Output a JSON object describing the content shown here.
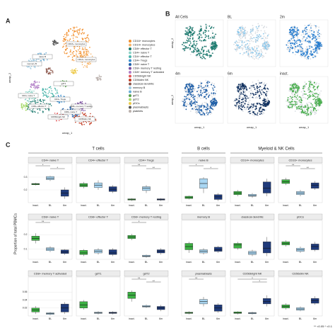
{
  "panel_a": {
    "label": "A",
    "x_label": "umap_1",
    "y_label": "umap_2",
    "legend": [
      {
        "name": "CD16+ monocytes",
        "color": "#f28e2b"
      },
      {
        "name": "CD14+ monocytes",
        "color": "#f7b56b"
      },
      {
        "name": "CD8+ effector T",
        "color": "#1b7a6e"
      },
      {
        "name": "CD4+ naive T",
        "color": "#8dd3c7"
      },
      {
        "name": "CD4+ effector T",
        "color": "#4db6ac"
      },
      {
        "name": "CD4+ Tregs",
        "color": "#3a8fd0"
      },
      {
        "name": "CD8+ naive T",
        "color": "#1f5fa8"
      },
      {
        "name": "CD8+ memory T resting",
        "color": "#7b4fa0"
      },
      {
        "name": "CD8+ memory T activated",
        "color": "#b07cc6"
      },
      {
        "name": "CD56bright NK",
        "color": "#e15759"
      },
      {
        "name": "CD56dim NK",
        "color": "#c23b22"
      },
      {
        "name": "classical dendritic",
        "color": "#8c564b"
      },
      {
        "name": "memory B",
        "color": "#9ecae1"
      },
      {
        "name": "naive B",
        "color": "#6baed6"
      },
      {
        "name": "gdT1",
        "color": "#59a14f"
      },
      {
        "name": "gdT2",
        "color": "#a6d96a"
      },
      {
        "name": "pDCs",
        "color": "#edc948"
      },
      {
        "name": "plasmablasts",
        "color": "#555555"
      },
      {
        "name": "platelets",
        "color": "#bab0ac"
      }
    ]
  },
  "panel_b": {
    "label": "B",
    "x_label": "umap_1",
    "y_label": "umap_2",
    "plots": [
      {
        "title": "All Cells",
        "color": "#1b7a6e"
      },
      {
        "title": "BL",
        "color": "#8ec9ec"
      },
      {
        "title": "2m",
        "color": "#2a7fd0"
      },
      {
        "title": "4m",
        "color": "#1f5fa8"
      },
      {
        "title": "6m",
        "color": "#10305f"
      },
      {
        "title": "inact.",
        "color": "#4caf50"
      }
    ]
  },
  "panel_c": {
    "label": "C",
    "y_label": "Proportion of total PBMCs",
    "groups": [
      "T cells",
      "B cells",
      "Myeloid & NK Cells"
    ],
    "x_labels": [
      "inact.",
      "BL",
      "6m"
    ],
    "box_colors": [
      "#3cb043",
      "#a9d6f2",
      "#1f3a7a"
    ],
    "legend_text": "** <0.05  * <0.1",
    "panels": [
      {
        "title": "CD4+ naive T",
        "ylim": [
          0.1,
          0.35
        ],
        "yticks": [
          0.2,
          0.3
        ],
        "boxes": [
          [
            0.235,
            0.24,
            0.245,
            0.25,
            0.255
          ],
          [
            0.27,
            0.28,
            0.29,
            0.305,
            0.31
          ],
          [
            0.13,
            0.15,
            0.175,
            0.2,
            0.22
          ]
        ],
        "sig": [
          {
            "pair": [
              0,
              1
            ],
            "label": "*"
          },
          {
            "pair": [
              1,
              2
            ],
            "label": "*"
          }
        ]
      },
      {
        "title": "CD4+ effector T",
        "ylim": [
          0,
          1
        ],
        "boxes": [
          [
            0.45,
            0.5,
            0.55,
            0.6,
            0.65
          ],
          [
            0.4,
            0.47,
            0.55,
            0.62,
            0.7
          ],
          [
            0.3,
            0.35,
            0.42,
            0.5,
            0.55
          ]
        ]
      },
      {
        "title": "CD4+ Tregs",
        "ylim": [
          0,
          1
        ],
        "boxes": [
          [
            0.05,
            0.08,
            0.1,
            0.12,
            0.14
          ],
          [
            0.3,
            0.38,
            0.45,
            0.5,
            0.55
          ],
          [
            0.05,
            0.08,
            0.1,
            0.12,
            0.14
          ]
        ],
        "sig": [
          {
            "pair": [
              0,
              1
            ],
            "label": "**"
          },
          {
            "pair": [
              1,
              2
            ],
            "label": "**"
          }
        ]
      },
      {
        "title": "naive B",
        "ylim": [
          0,
          1
        ],
        "boxes": [
          [
            0.1,
            0.13,
            0.16,
            0.2,
            0.22
          ],
          [
            0.3,
            0.45,
            0.6,
            0.75,
            0.8
          ],
          [
            0.05,
            0.1,
            0.18,
            0.25,
            0.3
          ]
        ],
        "sig": [
          {
            "pair": [
              0,
              1
            ],
            "label": "*"
          },
          {
            "pair": [
              1,
              2
            ],
            "label": "*"
          }
        ]
      },
      {
        "title": "CD14+ monocytes",
        "ylim": [
          0,
          1
        ],
        "boxes": [
          [
            0.2,
            0.25,
            0.3,
            0.35,
            0.4
          ],
          [
            0.15,
            0.2,
            0.22,
            0.26,
            0.3
          ],
          [
            0.2,
            0.3,
            0.45,
            0.65,
            0.75
          ]
        ]
      },
      {
        "title": "CD16+ monocytes",
        "ylim": [
          0,
          1
        ],
        "boxes": [
          [
            0.55,
            0.6,
            0.65,
            0.72,
            0.78
          ],
          [
            0.2,
            0.25,
            0.3,
            0.35,
            0.4
          ],
          [
            0.4,
            0.45,
            0.55,
            0.62,
            0.68
          ]
        ],
        "sig": [
          {
            "pair": [
              0,
              1
            ],
            "label": "**"
          },
          {
            "pair": [
              1,
              2
            ],
            "label": "**"
          }
        ]
      },
      {
        "title": "CD8+ naive T",
        "ylim": [
          0.03,
          0.25
        ],
        "yticks": [
          0.1,
          0.2
        ],
        "boxes": [
          [
            0.14,
            0.16,
            0.175,
            0.19,
            0.21
          ],
          [
            0.08,
            0.09,
            0.1,
            0.11,
            0.12
          ],
          [
            0.06,
            0.07,
            0.08,
            0.095,
            0.1
          ]
        ],
        "sig": [
          {
            "pair": [
              0,
              1
            ],
            "label": "**"
          }
        ]
      },
      {
        "title": "CD8+ effector T",
        "ylim": [
          0,
          1
        ],
        "boxes": [
          [
            0.1,
            0.15,
            0.2,
            0.28,
            0.32
          ],
          [
            0.15,
            0.2,
            0.25,
            0.3,
            0.35
          ],
          [
            0.1,
            0.15,
            0.2,
            0.3,
            0.35
          ]
        ]
      },
      {
        "title": "CD8+ memory T resting",
        "ylim": [
          0,
          1
        ],
        "boxes": [
          [
            0.6,
            0.65,
            0.7,
            0.75,
            0.8
          ],
          [
            0.05,
            0.08,
            0.1,
            0.13,
            0.15
          ],
          [
            0.15,
            0.2,
            0.25,
            0.3,
            0.35
          ]
        ],
        "sig": [
          {
            "pair": [
              0,
              1
            ],
            "label": "*"
          }
        ]
      },
      {
        "title": "memory B",
        "ylim": [
          0,
          1
        ],
        "boxes": [
          [
            0.2,
            0.3,
            0.4,
            0.5,
            0.55
          ],
          [
            0.15,
            0.2,
            0.25,
            0.3,
            0.35
          ],
          [
            0.2,
            0.25,
            0.3,
            0.38,
            0.42
          ]
        ]
      },
      {
        "title": "classical dendritic",
        "ylim": [
          0,
          1
        ],
        "boxes": [
          [
            0.3,
            0.35,
            0.45,
            0.5,
            0.55
          ],
          [
            0.1,
            0.15,
            0.2,
            0.25,
            0.3
          ],
          [
            0.1,
            0.2,
            0.35,
            0.55,
            0.7
          ]
        ]
      },
      {
        "title": "pDCs",
        "ylim": [
          0,
          1
        ],
        "boxes": [
          [
            0.4,
            0.45,
            0.5,
            0.55,
            0.6
          ],
          [
            0.2,
            0.25,
            0.3,
            0.35,
            0.4
          ],
          [
            0.25,
            0.3,
            0.4,
            0.48,
            0.55
          ]
        ]
      },
      {
        "title": "CD8+ memory T activated",
        "ylim": [
          0,
          0.08
        ],
        "yticks": [
          0.02,
          0.04,
          0.06
        ],
        "boxes": [
          [
            0.005,
            0.01,
            0.015,
            0.02,
            0.025
          ],
          [
            0.002,
            0.004,
            0.006,
            0.008,
            0.01
          ],
          [
            0.005,
            0.01,
            0.02,
            0.03,
            0.035
          ]
        ]
      },
      {
        "title": "gdT1",
        "ylim": [
          0,
          1
        ],
        "boxes": [
          [
            0.2,
            0.25,
            0.35,
            0.45,
            0.5
          ],
          [
            0.05,
            0.08,
            0.1,
            0.12,
            0.15
          ],
          [
            0.05,
            0.08,
            0.1,
            0.12,
            0.15
          ]
        ]
      },
      {
        "title": "gdT2",
        "ylim": [
          0,
          1
        ],
        "boxes": [
          [
            0.45,
            0.55,
            0.65,
            0.75,
            0.8
          ],
          [
            0.25,
            0.28,
            0.3,
            0.33,
            0.36
          ],
          [
            0.15,
            0.2,
            0.25,
            0.3,
            0.35
          ]
        ],
        "sig": [
          {
            "pair": [
              0,
              1
            ],
            "label": "**"
          },
          {
            "pair": [
              1,
              2
            ],
            "label": "**"
          }
        ]
      },
      {
        "title": "plasmablasts",
        "ylim": [
          0,
          1
        ],
        "boxes": [
          [
            0.05,
            0.08,
            0.1,
            0.12,
            0.15
          ],
          [
            0.3,
            0.38,
            0.45,
            0.52,
            0.6
          ],
          [
            0.1,
            0.15,
            0.25,
            0.35,
            0.4
          ]
        ],
        "sig": [
          {
            "pair": [
              0,
              1
            ],
            "label": "**"
          }
        ]
      },
      {
        "title": "CD56bright NK",
        "ylim": [
          0,
          1
        ],
        "boxes": [
          [
            0.05,
            0.08,
            0.1,
            0.13,
            0.15
          ],
          [
            0.05,
            0.07,
            0.09,
            0.11,
            0.13
          ],
          [
            0.3,
            0.38,
            0.45,
            0.55,
            0.65
          ]
        ],
        "sig": [
          {
            "pair": [
              0,
              2
            ],
            "label": "*"
          },
          {
            "pair": [
              1,
              2
            ],
            "label": "*"
          }
        ]
      },
      {
        "title": "CD56dim NK",
        "ylim": [
          0,
          1
        ],
        "boxes": [
          [
            0.2,
            0.25,
            0.3,
            0.35,
            0.4
          ],
          [
            0.15,
            0.18,
            0.22,
            0.26,
            0.3
          ],
          [
            0.35,
            0.4,
            0.48,
            0.55,
            0.62
          ]
        ]
      }
    ]
  }
}
